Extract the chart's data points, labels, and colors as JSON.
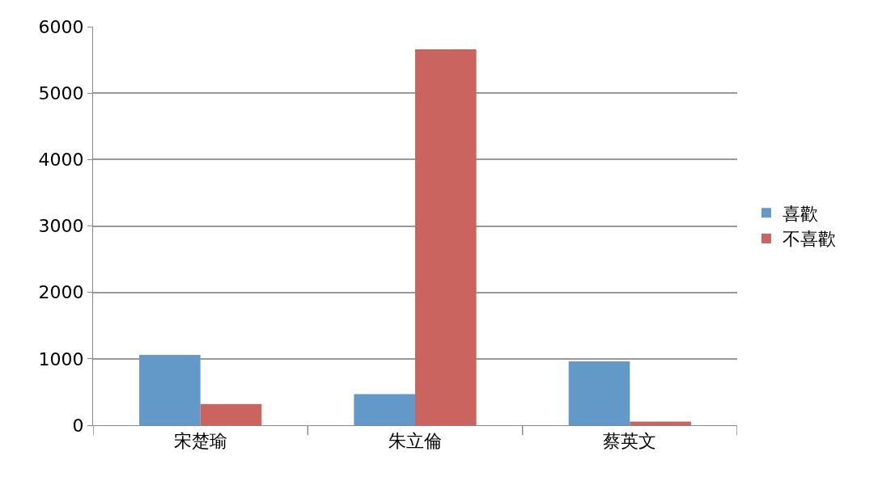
{
  "chart_data": {
    "type": "bar",
    "categories": [
      "宋楚瑜",
      "朱立倫",
      "蔡英文"
    ],
    "series": [
      {
        "name": "喜歡",
        "color": "#6399c9",
        "values": [
          1060,
          470,
          960
        ]
      },
      {
        "name": "不喜歡",
        "color": "#c9645f",
        "values": [
          320,
          5660,
          55
        ]
      }
    ],
    "ylim": [
      0,
      6000
    ],
    "yticks": [
      0,
      1000,
      2000,
      3000,
      4000,
      5000,
      6000
    ],
    "grid": "y",
    "legend": "right"
  }
}
